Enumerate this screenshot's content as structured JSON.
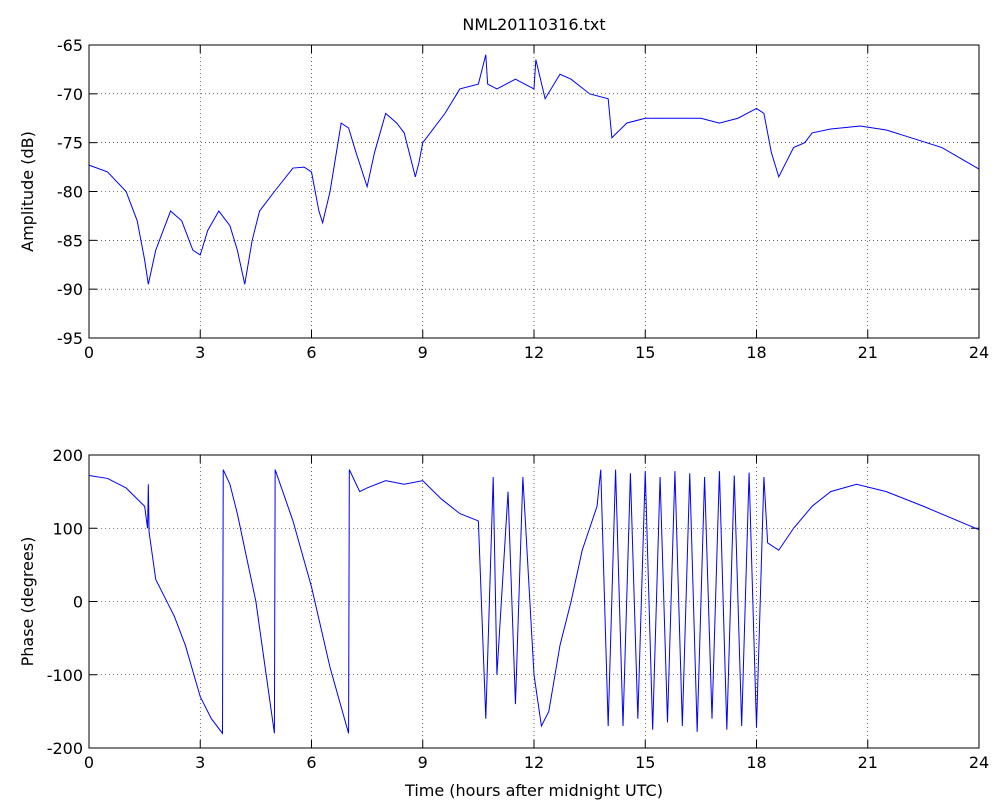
{
  "chart_data": [
    {
      "type": "line",
      "title": "NML20110316.txt",
      "ylabel": "Amplitude (dB)",
      "color": "#0000ff",
      "grid": true,
      "xlim": [
        0,
        24
      ],
      "xticks": [
        0,
        3,
        6,
        9,
        12,
        15,
        18,
        21,
        24
      ],
      "ylim": [
        -95,
        -65
      ],
      "yticks": [
        -95,
        -90,
        -85,
        -80,
        -75,
        -70,
        -65
      ],
      "x": [
        0,
        0.5,
        1,
        1.3,
        1.5,
        1.6,
        1.8,
        2,
        2.2,
        2.5,
        2.8,
        3,
        3.2,
        3.5,
        3.8,
        4,
        4.2,
        4.4,
        4.6,
        5,
        5.5,
        5.8,
        6,
        6.2,
        6.3,
        6.5,
        6.8,
        7,
        7.2,
        7.5,
        7.7,
        8,
        8.3,
        8.5,
        8.8,
        8.9,
        9,
        9.3,
        9.6,
        10,
        10.5,
        10.7,
        10.75,
        11,
        11.5,
        12,
        12.05,
        12.3,
        12.7,
        13,
        13.5,
        14,
        14.1,
        14.5,
        15,
        15.5,
        16,
        16.5,
        17,
        17.5,
        18,
        18.2,
        18.4,
        18.6,
        18.8,
        19,
        19.3,
        19.5,
        20,
        20.8,
        21.5,
        22,
        23,
        24
      ],
      "values": [
        -77.3,
        -78,
        -80,
        -83,
        -87,
        -89.5,
        -86,
        -84,
        -82,
        -83,
        -86,
        -86.5,
        -84,
        -82,
        -83.5,
        -86,
        -89.5,
        -85,
        -82,
        -80,
        -77.6,
        -77.5,
        -78,
        -82,
        -83.2,
        -80,
        -73,
        -73.5,
        -76,
        -79.5,
        -76,
        -72,
        -73,
        -74,
        -78.5,
        -77,
        -75,
        -73.5,
        -72,
        -69.5,
        -69,
        -66,
        -69,
        -69.5,
        -68.5,
        -69.5,
        -66.5,
        -70.5,
        -68,
        -68.5,
        -70,
        -70.5,
        -74.5,
        -73,
        -72.5,
        -72.5,
        -72.5,
        -72.5,
        -73,
        -72.5,
        -71.5,
        -72,
        -76,
        -78.5,
        -77,
        -75.5,
        -75,
        -74,
        -73.6,
        -73.3,
        -73.7,
        -74.3,
        -75.5,
        -77.7
      ]
    },
    {
      "type": "line",
      "ylabel": "Phase (degrees)",
      "xlabel": "Time (hours after midnight UTC)",
      "color": "#0000ff",
      "grid": true,
      "xlim": [
        0,
        24
      ],
      "xticks": [
        0,
        3,
        6,
        9,
        12,
        15,
        18,
        21,
        24
      ],
      "ylim": [
        -200,
        200
      ],
      "yticks": [
        -200,
        -100,
        0,
        100,
        200
      ],
      "x": [
        0,
        0.5,
        1,
        1.5,
        1.58,
        1.6,
        1.62,
        1.8,
        2,
        2.3,
        2.6,
        3,
        3.3,
        3.6,
        3.62,
        3.8,
        4,
        4.5,
        5,
        5.02,
        5.5,
        6,
        6.5,
        7,
        7.02,
        7.3,
        7.5,
        8,
        8.5,
        9,
        9.5,
        10,
        10.5,
        10.7,
        10.9,
        11,
        11.3,
        11.5,
        11.7,
        12,
        12.2,
        12.4,
        12.7,
        13,
        13.3,
        13.7,
        13.8,
        14,
        14.2,
        14.4,
        14.6,
        14.8,
        15,
        15.2,
        15.4,
        15.6,
        15.8,
        16,
        16.2,
        16.4,
        16.6,
        16.8,
        17,
        17.2,
        17.4,
        17.6,
        17.8,
        18,
        18.2,
        18.3,
        18.6,
        19,
        19.5,
        20,
        20.7,
        21.5,
        22.5,
        24
      ],
      "values": [
        172,
        168,
        155,
        130,
        100,
        160,
        95,
        30,
        10,
        -20,
        -60,
        -130,
        -160,
        -180,
        180,
        160,
        120,
        0,
        -180,
        180,
        110,
        20,
        -90,
        -180,
        180,
        150,
        155,
        165,
        160,
        165,
        140,
        120,
        110,
        -160,
        170,
        -100,
        150,
        -140,
        170,
        -100,
        -170,
        -150,
        -60,
        0,
        70,
        130,
        180,
        -170,
        180,
        -170,
        175,
        -160,
        178,
        -175,
        170,
        -165,
        178,
        -170,
        175,
        -178,
        170,
        -160,
        178,
        -175,
        172,
        -170,
        176,
        -172,
        170,
        80,
        70,
        100,
        130,
        150,
        160,
        150,
        130,
        98
      ]
    }
  ]
}
